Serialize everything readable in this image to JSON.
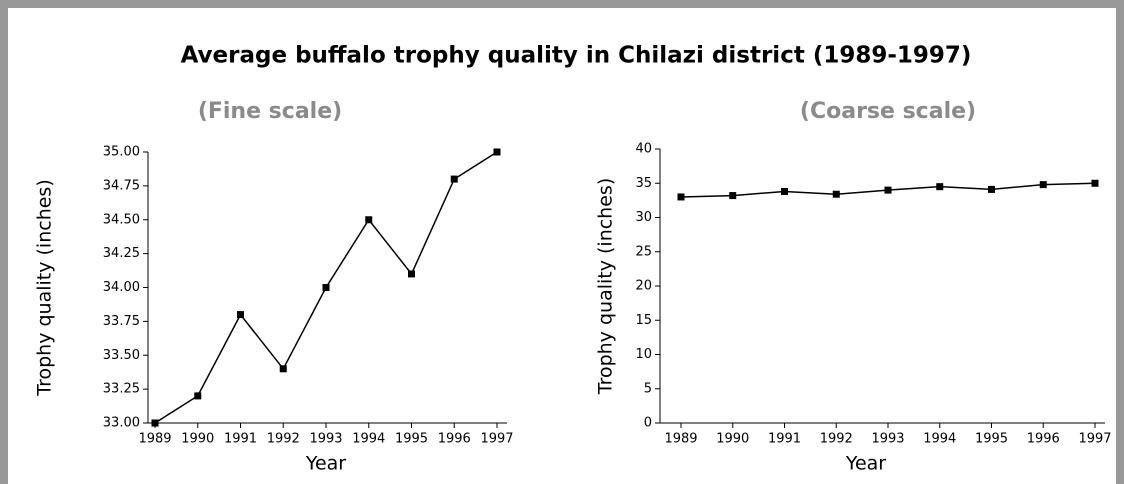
{
  "title": "Average buffalo trophy quality in Chilazi district (1989-1997)",
  "chart_data": [
    {
      "type": "line",
      "title": "(Fine scale)",
      "x_label": "Year",
      "y_label": "Trophy quality (inches)",
      "categories": [
        "1989",
        "1990",
        "1991",
        "1992",
        "1993",
        "1994",
        "1995",
        "1996",
        "1997"
      ],
      "values": [
        33.0,
        33.2,
        33.8,
        33.4,
        34.0,
        34.5,
        34.1,
        34.8,
        35.0
      ],
      "color": "#000000",
      "ylim": [
        33,
        35
      ],
      "yticks": [
        {
          "value": 33,
          "label": "33.00"
        },
        {
          "value": 33.25,
          "label": "33.25"
        },
        {
          "value": 33.5,
          "label": "33.50"
        },
        {
          "value": 33.75,
          "label": "33.75"
        },
        {
          "value": 34,
          "label": "34.00"
        },
        {
          "value": 34.25,
          "label": "34.25"
        },
        {
          "value": 34.5,
          "label": "34.50"
        },
        {
          "value": 34.75,
          "label": "34.75"
        },
        {
          "value": 35,
          "label": "35.00"
        }
      ]
    },
    {
      "type": "line",
      "title": "(Coarse scale)",
      "x_label": "Year",
      "y_label": "Trophy quality (inches)",
      "categories": [
        "1989",
        "1990",
        "1991",
        "1992",
        "1993",
        "1994",
        "1995",
        "1996",
        "1997"
      ],
      "values": [
        33.0,
        33.2,
        33.8,
        33.4,
        34.0,
        34.5,
        34.1,
        34.8,
        35.0
      ],
      "color": "#000000",
      "ylim": [
        0,
        40
      ],
      "yticks": [
        0,
        5,
        10,
        15,
        20,
        25,
        30,
        35,
        40
      ]
    }
  ]
}
